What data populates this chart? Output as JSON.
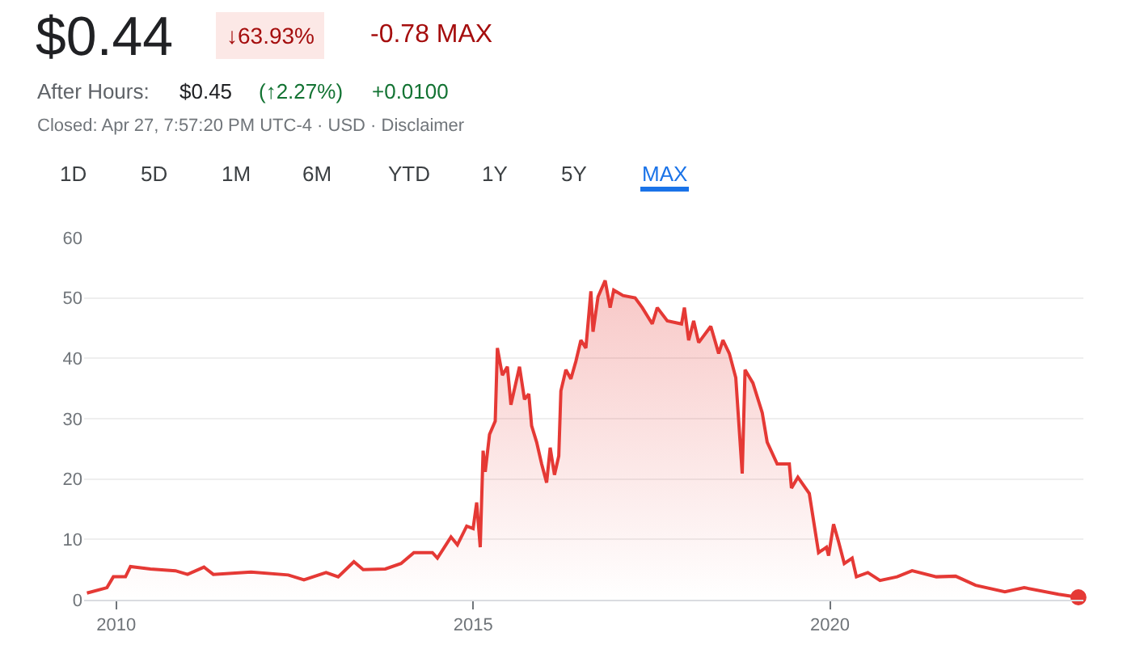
{
  "chart_data": {
    "type": "area",
    "title": "$0.44",
    "annotations": [
      "↓63.93%",
      "-0.78 MAX",
      "After Hours:",
      "$0.45",
      "(↑2.27%)",
      "+0.0100",
      "Closed: Apr 27, 7:57:20 PM UTC-4 · USD · Disclaimer",
      "1D",
      "5D",
      "1M",
      "6M",
      "YTD",
      "1Y",
      "5Y",
      "MAX"
    ],
    "x": [
      2009.59,
      2009.87,
      2009.96,
      2010.13,
      2010.2,
      2010.48,
      2010.83,
      2011.0,
      2011.23,
      2011.36,
      2011.89,
      2012.41,
      2012.63,
      2012.94,
      2013.11,
      2013.33,
      2013.46,
      2013.77,
      2013.99,
      2014.17,
      2014.43,
      2014.5,
      2014.69,
      2014.78,
      2014.91,
      2015.0,
      2015.05,
      2015.1,
      2015.14,
      2015.17,
      2015.23,
      2015.31,
      2015.34,
      2015.41,
      2015.48,
      2015.53,
      2015.65,
      2015.72,
      2015.78,
      2015.82,
      2015.89,
      2015.96,
      2016.03,
      2016.08,
      2016.14,
      2016.2,
      2016.23,
      2016.3,
      2016.37,
      2016.44,
      2016.51,
      2016.58,
      2016.65,
      2016.68,
      2016.75,
      2016.85,
      2016.92,
      2016.97,
      2017.1,
      2017.27,
      2017.37,
      2017.51,
      2017.58,
      2017.72,
      2017.92,
      2017.96,
      2018.02,
      2018.09,
      2018.16,
      2018.33,
      2018.44,
      2018.5,
      2018.59,
      2018.68,
      2018.77,
      2018.81,
      2018.92,
      2019.05,
      2019.12,
      2019.26,
      2019.43,
      2019.46,
      2019.55,
      2019.71,
      2019.84,
      2019.95,
      2019.98,
      2020.05,
      2020.12,
      2020.2,
      2020.31,
      2020.37,
      2020.53,
      2020.7,
      2020.94,
      2021.15,
      2021.49,
      2021.76,
      2022.04,
      2022.45,
      2022.72,
      2023.2,
      2023.48
    ],
    "series": [
      {
        "color": "#e53935",
        "values": [
          1.1,
          2.0,
          3.8,
          3.8,
          5.5,
          5.1,
          4.8,
          4.2,
          5.4,
          4.2,
          4.6,
          4.1,
          3.3,
          4.5,
          3.8,
          6.3,
          5.0,
          5.1,
          6.0,
          7.8,
          7.8,
          6.9,
          10.4,
          9.1,
          12.2,
          11.8,
          16.1,
          8.7,
          24.7,
          21.2,
          27.4,
          29.6,
          41.7,
          37.2,
          38.6,
          32.3,
          38.6,
          33.2,
          34.1,
          28.8,
          26.1,
          22.5,
          19.4,
          25.2,
          20.7,
          23.8,
          34.6,
          38.1,
          36.6,
          39.5,
          43.0,
          41.7,
          51.1,
          44.4,
          50.2,
          52.9,
          48.4,
          51.3,
          50.4,
          50.0,
          48.4,
          45.7,
          48.4,
          46.2,
          45.7,
          48.4,
          43.0,
          46.2,
          42.6,
          45.3,
          40.8,
          43.0,
          40.8,
          36.8,
          20.9,
          38.1,
          35.9,
          31.0,
          26.1,
          22.5,
          22.5,
          18.5,
          20.3,
          17.6,
          7.8,
          8.7,
          7.3,
          12.5,
          9.6,
          6.0,
          6.9,
          3.8,
          4.5,
          3.2,
          3.8,
          4.8,
          3.8,
          3.9,
          2.4,
          1.3,
          2.0,
          0.9,
          0.4
        ]
      }
    ],
    "xlim": [
      2009.55,
      2023.55
    ],
    "xticks": [
      2010,
      2015,
      2020
    ],
    "ylim": [
      0,
      60
    ],
    "yticks": [
      0,
      10,
      20,
      30,
      40,
      50,
      60
    ],
    "grid": "y"
  }
}
